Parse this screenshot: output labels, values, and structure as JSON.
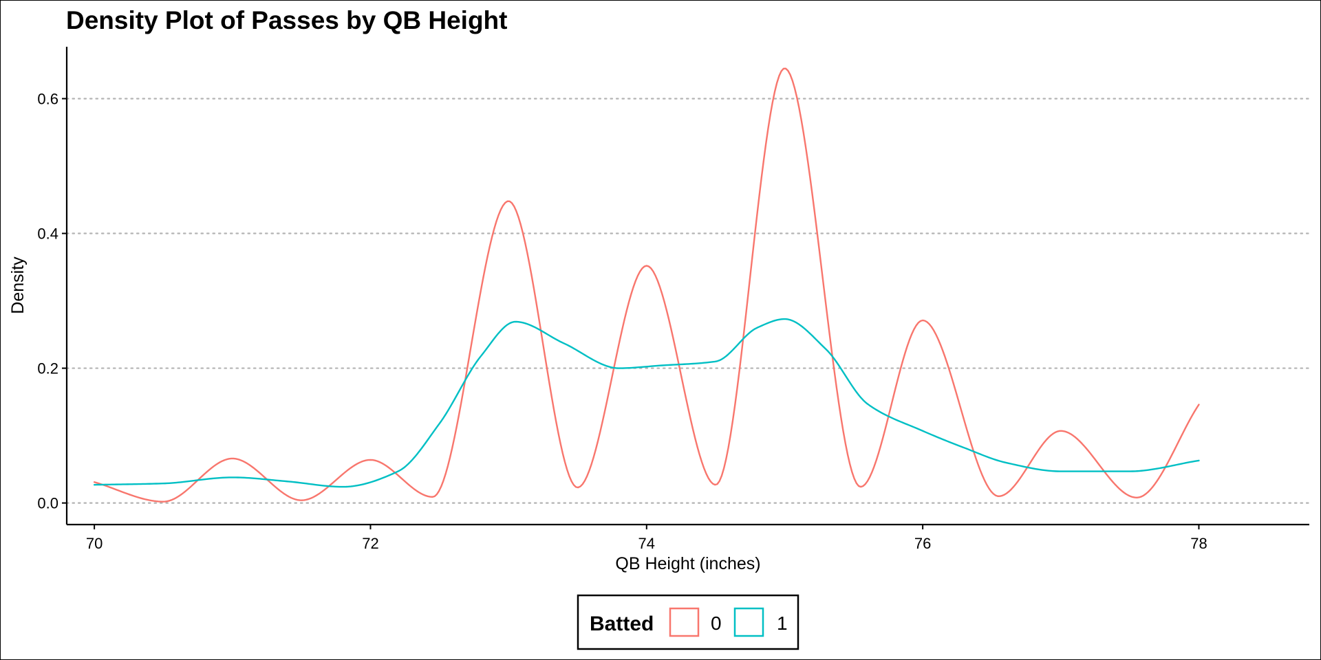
{
  "chart_data": {
    "type": "line",
    "title": "Density Plot of Passes by QB Height",
    "xlabel": "QB Height (inches)",
    "ylabel": "Density",
    "xlim": [
      69.8,
      78.8
    ],
    "ylim": [
      -0.032,
      0.677
    ],
    "x_ticks": [
      70,
      72,
      74,
      76,
      78
    ],
    "x_tick_labels": [
      "70",
      "72",
      "74",
      "76",
      "78"
    ],
    "y_ticks": [
      0.0,
      0.2,
      0.4,
      0.6
    ],
    "y_tick_labels": [
      "0.0",
      "0.2",
      "0.4",
      "0.6"
    ],
    "grid": "horizontal dotted major gridlines",
    "legend": {
      "title": "Batted",
      "placement": "bottom",
      "entries": [
        "0",
        "1"
      ]
    },
    "series": [
      {
        "name": "0",
        "color": "#F8766D",
        "x": [
          70.0,
          70.5,
          71.0,
          71.5,
          72.0,
          72.45,
          73.0,
          73.5,
          74.0,
          74.5,
          75.0,
          75.55,
          76.0,
          76.55,
          77.0,
          77.55,
          78.0
        ],
        "y": [
          0.031,
          0.002,
          0.066,
          0.004,
          0.064,
          0.009,
          0.448,
          0.023,
          0.352,
          0.027,
          0.645,
          0.024,
          0.271,
          0.01,
          0.107,
          0.008,
          0.146
        ]
      },
      {
        "name": "1",
        "color": "#00BFC4",
        "x": [
          70.0,
          70.5,
          71.0,
          71.4,
          71.8,
          72.2,
          72.5,
          72.8,
          73.05,
          73.4,
          73.8,
          74.1,
          74.5,
          74.8,
          75.0,
          75.3,
          75.6,
          76.0,
          76.3,
          76.6,
          77.0,
          77.5,
          78.0
        ],
        "y": [
          0.027,
          0.029,
          0.038,
          0.032,
          0.024,
          0.047,
          0.118,
          0.218,
          0.269,
          0.237,
          0.2,
          0.204,
          0.21,
          0.26,
          0.273,
          0.228,
          0.147,
          0.107,
          0.082,
          0.06,
          0.047,
          0.047,
          0.063
        ]
      }
    ]
  }
}
